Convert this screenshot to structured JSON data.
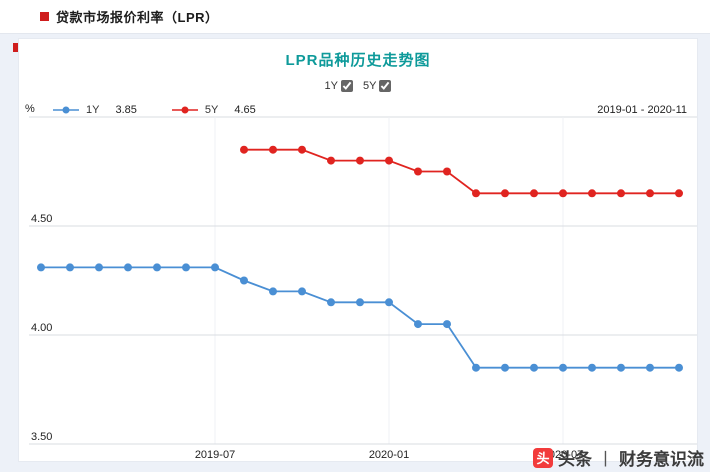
{
  "page": {
    "title": "贷款市场报价利率（LPR）"
  },
  "chart": {
    "title": "LPR品种历史走势图",
    "controls": [
      {
        "label": "1Y",
        "checked": true
      },
      {
        "label": "5Y",
        "checked": true
      }
    ],
    "unit": "%",
    "legend": [
      {
        "name": "1Y",
        "latest": "3.85",
        "color": "#4a8fd4"
      },
      {
        "name": "5Y",
        "latest": "4.65",
        "color": "#e02420"
      }
    ],
    "date_range": "2019-01 - 2020-11"
  },
  "watermark": {
    "icon_glyph": "头",
    "brand": "头条",
    "separator": "丨",
    "account": "财务意识流"
  },
  "chart_data": {
    "type": "line",
    "x": [
      "2019-01",
      "2019-02",
      "2019-03",
      "2019-04",
      "2019-05",
      "2019-06",
      "2019-07",
      "2019-08",
      "2019-09",
      "2019-10",
      "2019-11",
      "2019-12",
      "2020-01",
      "2020-02",
      "2020-03",
      "2020-04",
      "2020-05",
      "2020-06",
      "2020-07",
      "2020-08",
      "2020-09",
      "2020-10",
      "2020-11"
    ],
    "x_tick_labels": [
      "2019-07",
      "2020-01",
      "2020-07"
    ],
    "x_tick_indices": [
      6,
      12,
      18
    ],
    "ylim": [
      3.5,
      5.0
    ],
    "y_gridlines": [
      4.5,
      4.0,
      3.5
    ],
    "y_tick_labels": [
      "4.50",
      "4.00",
      "3.50"
    ],
    "series": [
      {
        "name": "1Y",
        "color": "#4a8fd4",
        "start_index": 0,
        "values": [
          4.31,
          4.31,
          4.31,
          4.31,
          4.31,
          4.31,
          4.31,
          4.25,
          4.2,
          4.2,
          4.15,
          4.15,
          4.15,
          4.05,
          4.05,
          3.85,
          3.85,
          3.85,
          3.85,
          3.85,
          3.85,
          3.85,
          3.85
        ]
      },
      {
        "name": "5Y",
        "color": "#e02420",
        "start_index": 7,
        "values": [
          4.85,
          4.85,
          4.85,
          4.8,
          4.8,
          4.8,
          4.75,
          4.75,
          4.65,
          4.65,
          4.65,
          4.65,
          4.65,
          4.65,
          4.65,
          4.65
        ]
      }
    ],
    "title": "LPR品种历史走势图",
    "xlabel": "",
    "ylabel": "%"
  }
}
